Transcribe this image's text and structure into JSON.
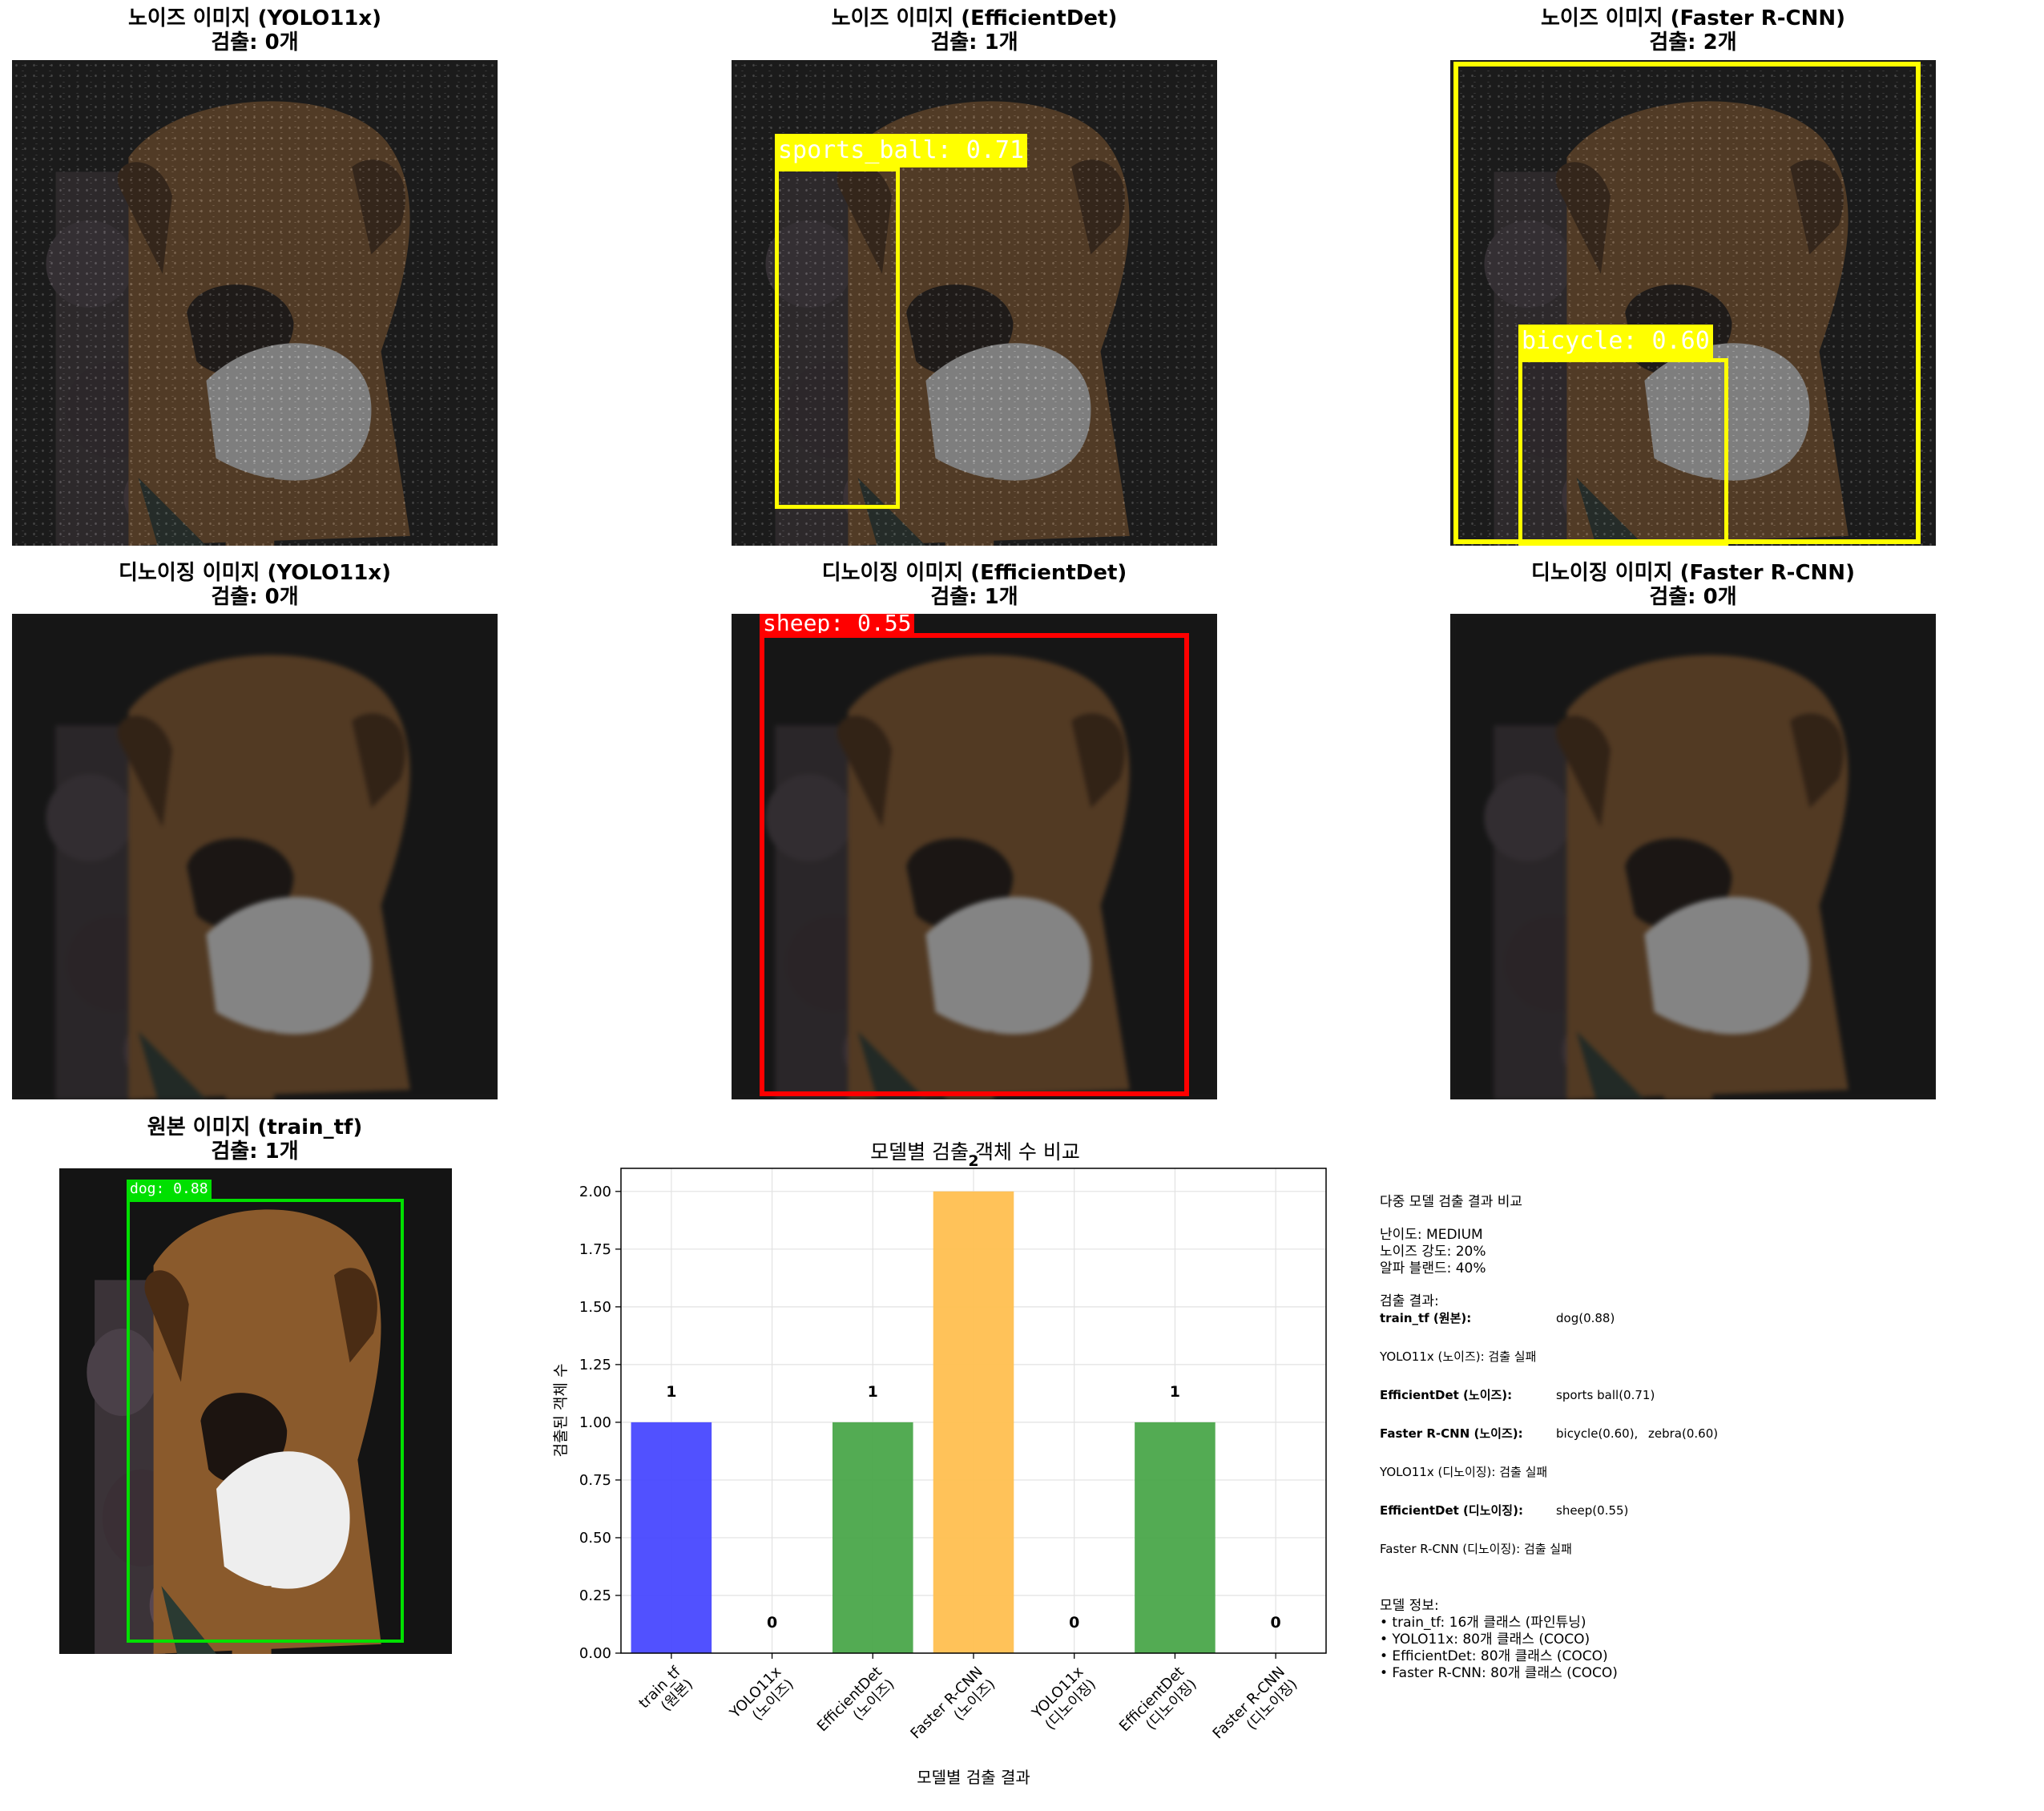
{
  "panels": [
    {
      "id": "p1",
      "title": "노이즈 이미지 (YOLO11x)",
      "count": "검출: 0개"
    },
    {
      "id": "p2",
      "title": "노이즈 이미지 (EfficientDet)",
      "count": "검출: 1개"
    },
    {
      "id": "p3",
      "title": "노이즈 이미지 (Faster R-CNN)",
      "count": "검출: 2개"
    },
    {
      "id": "p4",
      "title": "디노이징 이미지 (YOLO11x)",
      "count": "검출: 0개"
    },
    {
      "id": "p5",
      "title": "디노이징 이미지 (EfficientDet)",
      "count": "검출: 1개"
    },
    {
      "id": "p6",
      "title": "디노이징 이미지 (Faster R-CNN)",
      "count": "검출: 0개"
    },
    {
      "id": "p7",
      "title": "원본 이미지 (train_tf)",
      "count": "검출: 1개"
    }
  ],
  "boxes": {
    "p2_label": "sports_ball: 0.71",
    "p3_label": "bicycle: 0.60",
    "p5_label": "sheep: 0.55",
    "p7_label": "dog: 0.88"
  },
  "colors": {
    "yellow": "#ffff00",
    "red": "#ff0000",
    "green": "#00e000",
    "bar_blue": "#4848ff",
    "bar_green": "#4aa64a",
    "bar_orange": "#ffbf50"
  },
  "chart_data": {
    "type": "bar",
    "title": "모델별 검출 객체 수 비교",
    "xlabel": "모델별 검출 결과",
    "ylabel": "검출된 객체 수",
    "categories": [
      "train_tf\n(원본)",
      "YOLO11x\n(노이즈)",
      "EfficientDet\n(노이즈)",
      "Faster R-CNN\n(노이즈)",
      "YOLO11x\n(디노이징)",
      "EfficientDet\n(디노이징)",
      "Faster R-CNN\n(디노이징)"
    ],
    "values": [
      1,
      0,
      1,
      2,
      0,
      1,
      0
    ],
    "bar_colors": [
      "#4848ff",
      "#4aa64a",
      "#4aa64a",
      "#ffbf50",
      "#4aa64a",
      "#4aa64a",
      "#4aa64a"
    ],
    "ylim": [
      0,
      2.1
    ],
    "yticks": [
      "0.00",
      "0.25",
      "0.50",
      "0.75",
      "1.00",
      "1.25",
      "1.50",
      "1.75",
      "2.00"
    ],
    "grid": true
  },
  "info": {
    "heading": "다중 모델 검출 결과 비교",
    "difficulty": "난이도: MEDIUM",
    "noise": "노이즈 강도: 20%",
    "alpha": "알파 블랜드: 40%",
    "results_heading": "검출 결과:",
    "r1_label": "train_tf (원본):",
    "r1_value": "dog(0.88)",
    "r2": "YOLO11x (노이즈): 검출 실패",
    "r3_label": "EfficientDet (노이즈):",
    "r3_value": "sports ball(0.71)",
    "r4_label": "Faster R-CNN (노이즈):",
    "r4_value": "bicycle(0.60),",
    "r4_value2": "zebra(0.60)",
    "r5": "YOLO11x (디노이징): 검출 실패",
    "r6_label": "EfficientDet (디노이징):",
    "r6_value": "sheep(0.55)",
    "r7": "Faster R-CNN (디노이징): 검출 실패",
    "model_heading": "모델 정보:",
    "m1": "• train_tf: 16개 클래스 (파인튜닝)",
    "m2": "• YOLO11x: 80개 클래스 (COCO)",
    "m3": "• EfficientDet: 80개 클래스 (COCO)",
    "m4": "• Faster R-CNN: 80개 클래스 (COCO)"
  }
}
